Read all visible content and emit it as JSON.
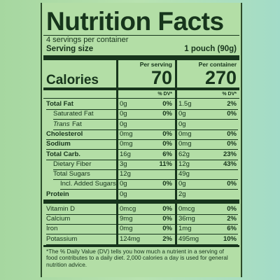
{
  "title": "Nutrition Facts",
  "servings": "4 servings per container",
  "serving_size": {
    "label": "Serving size",
    "value": "1 pouch (90g)"
  },
  "columns": [
    "Per serving",
    "Per container"
  ],
  "calories": {
    "label": "Calories",
    "values": [
      "70",
      "270"
    ]
  },
  "dv_header": "% DV*",
  "rows": [
    {
      "name": "Total Fat",
      "bold": true,
      "indent": 0,
      "cells": [
        "0g",
        "0%",
        "1.5g",
        "2%"
      ]
    },
    {
      "name": "Saturated Fat",
      "bold": false,
      "indent": 1,
      "cells": [
        "0g",
        "0%",
        "0g",
        "0%"
      ]
    },
    {
      "name_italic": "Trans",
      "name": "Fat",
      "bold": false,
      "indent": 1,
      "cells": [
        "0g",
        null,
        "0g",
        null
      ]
    },
    {
      "name": "Cholesterol",
      "bold": true,
      "indent": 0,
      "cells": [
        "0mg",
        "0%",
        "0mg",
        "0%"
      ]
    },
    {
      "name": "Sodium",
      "bold": true,
      "indent": 0,
      "cells": [
        "0mg",
        "0%",
        "0mg",
        "0%"
      ]
    },
    {
      "name": "Total Carb.",
      "bold": true,
      "indent": 0,
      "cells": [
        "16g",
        "6%",
        "62g",
        "23%"
      ]
    },
    {
      "name": "Dietary Fiber",
      "bold": false,
      "indent": 1,
      "cells": [
        "3g",
        "11%",
        "12g",
        "43%"
      ]
    },
    {
      "name": "Total Sugars",
      "bold": false,
      "indent": 1,
      "cells": [
        "12g",
        null,
        "49g",
        null
      ]
    },
    {
      "name": "Incl. Added Sugars",
      "bold": false,
      "indent": 2,
      "cells": [
        "0g",
        "0%",
        "0g",
        "0%"
      ]
    },
    {
      "name": "Protein",
      "bold": true,
      "indent": 0,
      "cells": [
        "0g",
        null,
        "2g",
        null
      ]
    },
    {
      "name": "Vitamin D",
      "bold": false,
      "indent": 0,
      "cells": [
        "0mcg",
        "0%",
        "0mcg",
        "0%"
      ]
    },
    {
      "name": "Calcium",
      "bold": false,
      "indent": 0,
      "cells": [
        "9mg",
        "0%",
        "36mg",
        "2%"
      ]
    },
    {
      "name": "Iron",
      "bold": false,
      "indent": 0,
      "cells": [
        "0mg",
        "0%",
        "1mg",
        "6%"
      ]
    },
    {
      "name": "Potassium",
      "bold": false,
      "indent": 0,
      "cells": [
        "124mg",
        "2%",
        "495mg",
        "10%"
      ]
    }
  ],
  "footnote": "*The % Daily Value (DV) tells you how much a nutrient in a serving of food contributes to a daily diet. 2,000 calories a day is used for general nutrition advice."
}
